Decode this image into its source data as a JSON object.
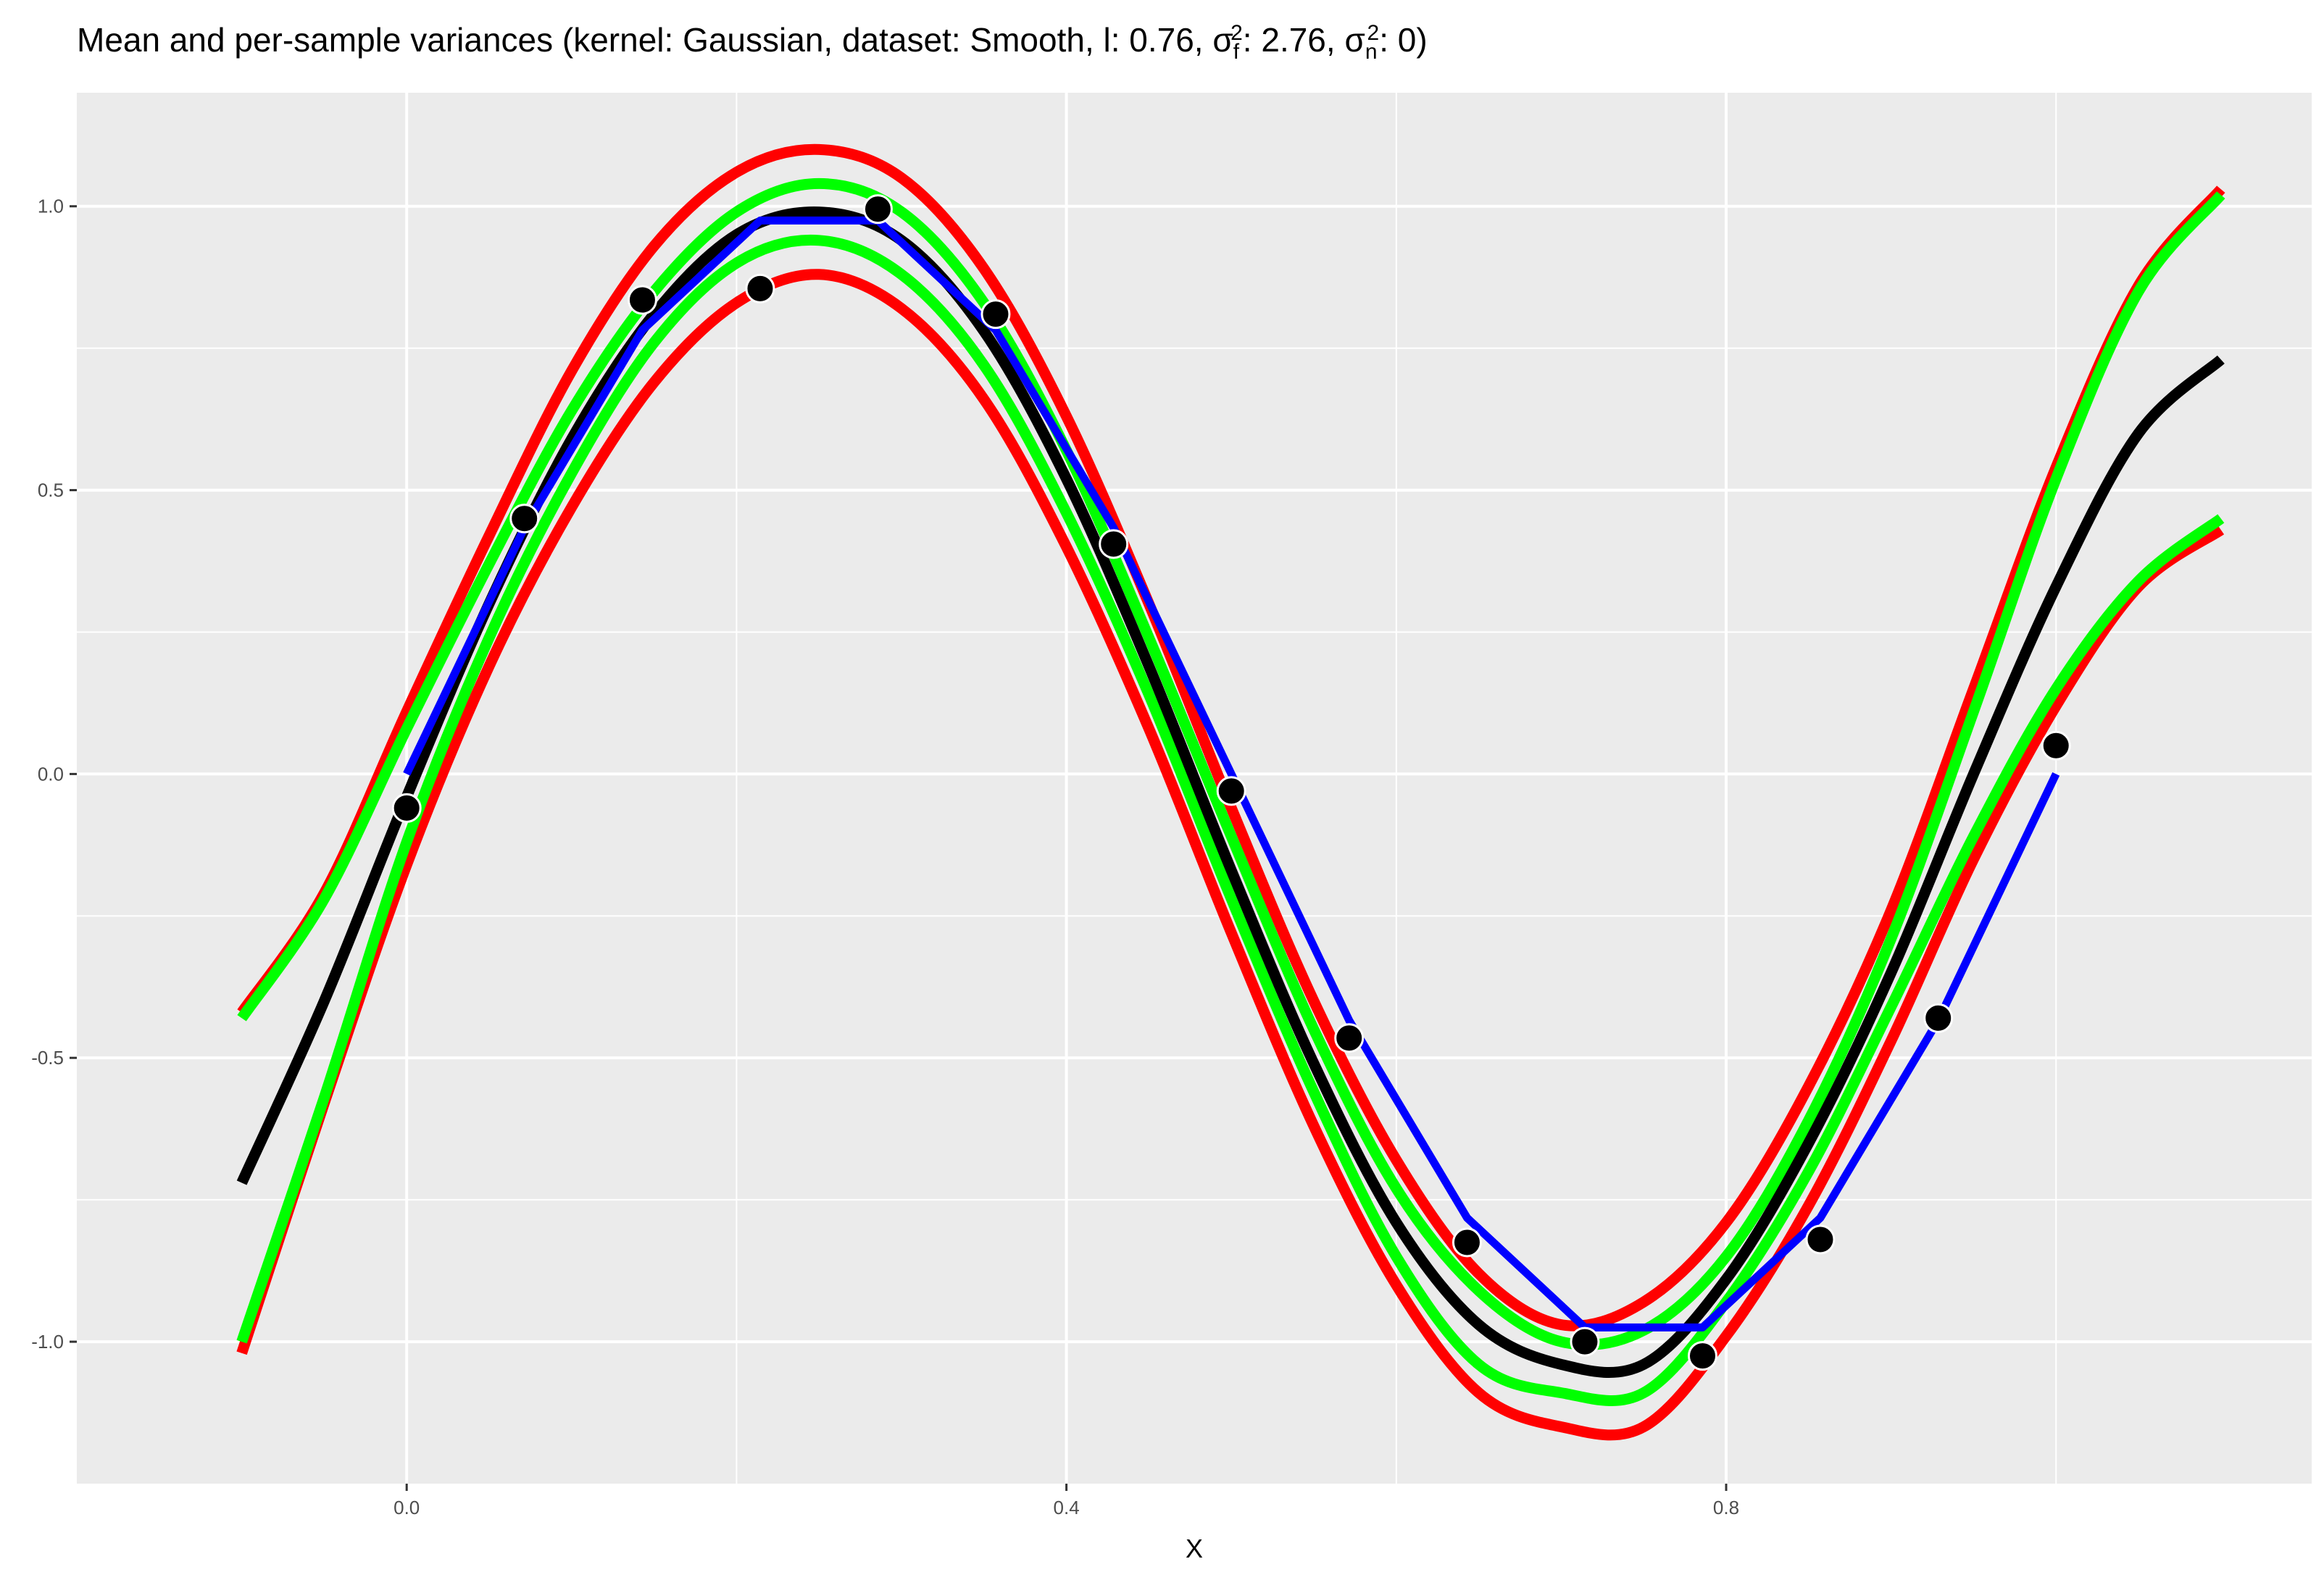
{
  "chart_data": {
    "type": "line",
    "title_parts": {
      "prefix": "Mean and per-sample variances (kernel: Gaussian, dataset: Smooth, l: 0.76, σ",
      "sf_sup": "2",
      "sf_sub": "f",
      "sf_val": ": 2.76, σ",
      "sn_sup": "2",
      "sn_sub": "n",
      "sn_val": ": 0)"
    },
    "xlabel": "X",
    "ylabel": "",
    "xlim": [
      -0.2,
      1.155
    ],
    "ylim": [
      -1.25,
      1.2
    ],
    "x_ticks": [
      0.0,
      0.4,
      0.8
    ],
    "x_tick_labels": [
      "0.0",
      "0.4",
      "0.8"
    ],
    "x_minor_ticks": [
      0.2,
      0.6,
      1.0
    ],
    "y_ticks": [
      -1.0,
      -0.5,
      0.0,
      0.5,
      1.0
    ],
    "y_tick_labels": [
      "-1.0",
      "-0.5",
      "0.0",
      "0.5",
      "1.0"
    ],
    "y_minor_ticks": [
      -0.75,
      -0.25,
      0.25,
      0.75
    ],
    "panel_background": "#EBEBEB",
    "grid": true,
    "series": [
      {
        "color": "#FF0000",
        "x": [
          -0.1,
          -0.05,
          0.0,
          0.05,
          0.1,
          0.15,
          0.2,
          0.25,
          0.3,
          0.35,
          0.4,
          0.45,
          0.5,
          0.55,
          0.6,
          0.65,
          0.7,
          0.75,
          0.8,
          0.85,
          0.9,
          0.95,
          1.0,
          1.05,
          1.1
        ],
        "y": [
          -0.42,
          -0.21,
          0.11,
          0.42,
          0.71,
          0.93,
          1.06,
          1.1,
          1.05,
          0.89,
          0.63,
          0.3,
          -0.06,
          -0.4,
          -0.68,
          -0.88,
          -0.97,
          -0.93,
          -0.79,
          -0.55,
          -0.24,
          0.15,
          0.54,
          0.86,
          1.03
        ]
      },
      {
        "color": "#FF0000",
        "x": [
          -0.1,
          -0.05,
          0.0,
          0.05,
          0.1,
          0.15,
          0.2,
          0.25,
          0.3,
          0.35,
          0.4,
          0.45,
          0.5,
          0.55,
          0.6,
          0.65,
          0.7,
          0.75,
          0.8,
          0.85,
          0.9,
          0.95,
          1.0,
          1.05,
          1.1
        ],
        "y": [
          -1.02,
          -0.58,
          -0.16,
          0.19,
          0.47,
          0.69,
          0.83,
          0.88,
          0.82,
          0.66,
          0.4,
          0.08,
          -0.28,
          -0.62,
          -0.9,
          -1.09,
          -1.15,
          -1.15,
          -0.99,
          -0.76,
          -0.47,
          -0.15,
          0.12,
          0.33,
          0.43
        ]
      },
      {
        "color": "#00FF00",
        "x": [
          -0.1,
          -0.05,
          0.0,
          0.05,
          0.1,
          0.15,
          0.2,
          0.25,
          0.3,
          0.35,
          0.4,
          0.45,
          0.5,
          0.55,
          0.6,
          0.65,
          0.7,
          0.75,
          0.8,
          0.85,
          0.9,
          0.95,
          1.0,
          1.05,
          1.1
        ],
        "y": [
          -0.43,
          -0.22,
          0.08,
          0.37,
          0.64,
          0.85,
          0.99,
          1.04,
          0.99,
          0.83,
          0.57,
          0.24,
          -0.11,
          -0.45,
          -0.73,
          -0.91,
          -1.0,
          -0.98,
          -0.85,
          -0.61,
          -0.29,
          0.11,
          0.52,
          0.85,
          1.02
        ]
      },
      {
        "color": "#00FF00",
        "x": [
          -0.1,
          -0.05,
          0.0,
          0.05,
          0.1,
          0.15,
          0.2,
          0.25,
          0.3,
          0.35,
          0.4,
          0.45,
          0.5,
          0.55,
          0.6,
          0.65,
          0.7,
          0.75,
          0.8,
          0.85,
          0.9,
          0.95,
          1.0,
          1.05,
          1.1
        ],
        "y": [
          -1.0,
          -0.57,
          -0.12,
          0.24,
          0.53,
          0.76,
          0.9,
          0.94,
          0.88,
          0.72,
          0.46,
          0.14,
          -0.22,
          -0.56,
          -0.85,
          -1.04,
          -1.09,
          -1.09,
          -0.93,
          -0.7,
          -0.41,
          -0.11,
          0.15,
          0.34,
          0.45
        ]
      },
      {
        "color": "#000000",
        "x": [
          -0.1,
          -0.05,
          0.0,
          0.05,
          0.1,
          0.15,
          0.2,
          0.25,
          0.3,
          0.35,
          0.4,
          0.45,
          0.5,
          0.55,
          0.6,
          0.65,
          0.7,
          0.75,
          0.8,
          0.85,
          0.9,
          0.95,
          1.0,
          1.05,
          1.1
        ],
        "y": [
          -0.72,
          -0.4,
          -0.04,
          0.3,
          0.59,
          0.81,
          0.95,
          0.99,
          0.94,
          0.78,
          0.52,
          0.19,
          -0.17,
          -0.51,
          -0.79,
          -0.97,
          -1.04,
          -1.04,
          -0.89,
          -0.65,
          -0.35,
          0.0,
          0.33,
          0.6,
          0.73
        ]
      },
      {
        "color": "#0000FF",
        "x": [
          0.0,
          0.0714,
          0.1429,
          0.2143,
          0.2857,
          0.3571,
          0.4286,
          0.5,
          0.5714,
          0.6429,
          0.7143,
          0.7857,
          0.8571,
          0.9286,
          1.0
        ],
        "y": [
          0.0,
          0.4339,
          0.7818,
          0.9749,
          0.9749,
          0.7818,
          0.4339,
          0.0,
          -0.4339,
          -0.7818,
          -0.9749,
          -0.9749,
          -0.7818,
          -0.4339,
          0.0
        ]
      }
    ],
    "points": {
      "color": "#000000",
      "x": [
        0.0,
        0.0714,
        0.1429,
        0.2143,
        0.2857,
        0.3571,
        0.4286,
        0.5,
        0.5714,
        0.6429,
        0.7143,
        0.7857,
        0.8571,
        0.9286,
        1.0
      ],
      "y": [
        -0.06,
        0.45,
        0.835,
        0.855,
        0.995,
        0.81,
        0.405,
        -0.03,
        -0.465,
        -0.825,
        -1.0,
        -1.025,
        -0.82,
        -0.43,
        0.05
      ]
    }
  }
}
